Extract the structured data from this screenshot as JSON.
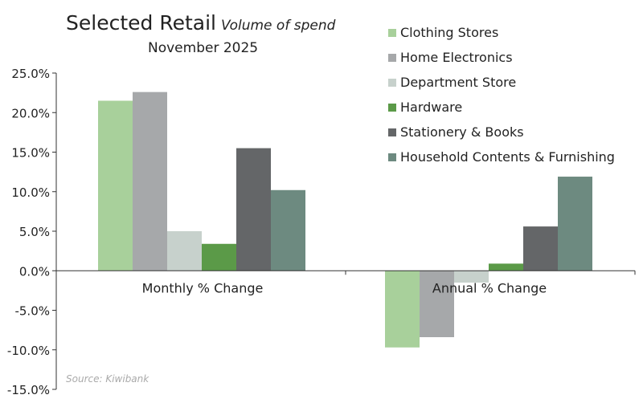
{
  "chart_data": {
    "type": "bar",
    "title": "Selected Retail",
    "title_italic": "Volume of spend",
    "subtitle": "November 2025",
    "categories": [
      "Monthly % Change",
      "Annual % Change"
    ],
    "series": [
      {
        "name": "Clothing Stores",
        "color": "#a8d09b",
        "values": [
          21.5,
          -9.7
        ]
      },
      {
        "name": "Home Electronics",
        "color": "#a6a8aa",
        "values": [
          22.6,
          -8.4
        ]
      },
      {
        "name": "Department Store",
        "color": "#c7d1cc",
        "values": [
          5.0,
          -1.5
        ]
      },
      {
        "name": "Hardware",
        "color": "#5b9a48",
        "values": [
          3.4,
          0.9
        ]
      },
      {
        "name": "Stationery & Books",
        "color": "#646668",
        "values": [
          15.5,
          5.6
        ]
      },
      {
        "name": "Household Contents & Furnishing",
        "color": "#6d8a80",
        "values": [
          10.2,
          11.9
        ]
      }
    ],
    "ylim": [
      -15,
      25
    ],
    "yticks": [
      25,
      20,
      15,
      10,
      5,
      0,
      -5,
      -10,
      -15
    ],
    "ytick_labels": [
      "25.0%",
      "20.0%",
      "15.0%",
      "10.0%",
      "5.0%",
      "0.0%",
      "-5.0%",
      "-10.0%",
      "-15.0%"
    ],
    "legend_position": "top-right",
    "grid": false,
    "source": "Source: Kiwibank"
  }
}
